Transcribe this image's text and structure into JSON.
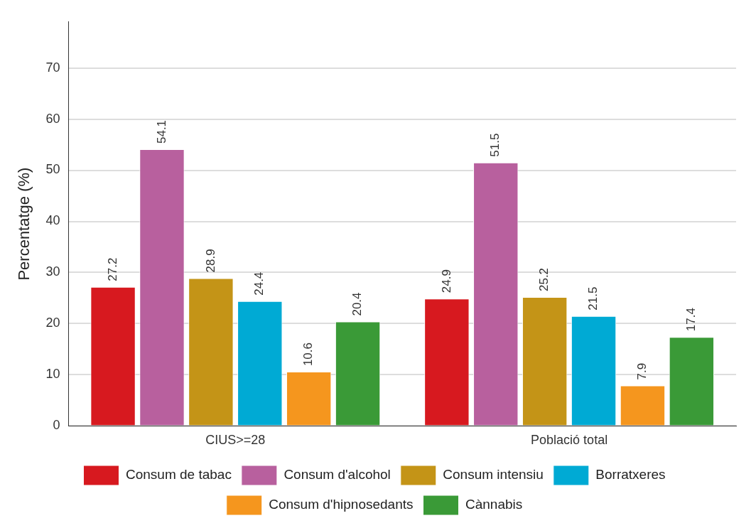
{
  "chart_data": {
    "type": "bar",
    "ylabel": "Percentatge (%)",
    "categories": [
      "CIUS>=28",
      "Població total"
    ],
    "series": [
      {
        "name": "Consum de tabac",
        "color": "#d7191f",
        "values": [
          27.2,
          24.9
        ]
      },
      {
        "name": "Consum d'alcohol",
        "color": "#b8609e",
        "values": [
          54.1,
          51.5
        ]
      },
      {
        "name": "Consum intensiu",
        "color": "#c49417",
        "values": [
          28.9,
          25.2
        ]
      },
      {
        "name": "Borratxeres",
        "color": "#00aad4",
        "values": [
          24.4,
          21.5
        ]
      },
      {
        "name": "Consum d'hipnosedants",
        "color": "#f5961e",
        "values": [
          10.6,
          7.9
        ]
      },
      {
        "name": "Cànnabis",
        "color": "#3a9a37",
        "values": [
          20.4,
          17.4
        ]
      }
    ],
    "ylim": [
      0,
      79
    ],
    "yticks": [
      0,
      10,
      20,
      30,
      40,
      50,
      60,
      70
    ],
    "grid": "y",
    "legend": "bottom",
    "data_labels": true
  }
}
